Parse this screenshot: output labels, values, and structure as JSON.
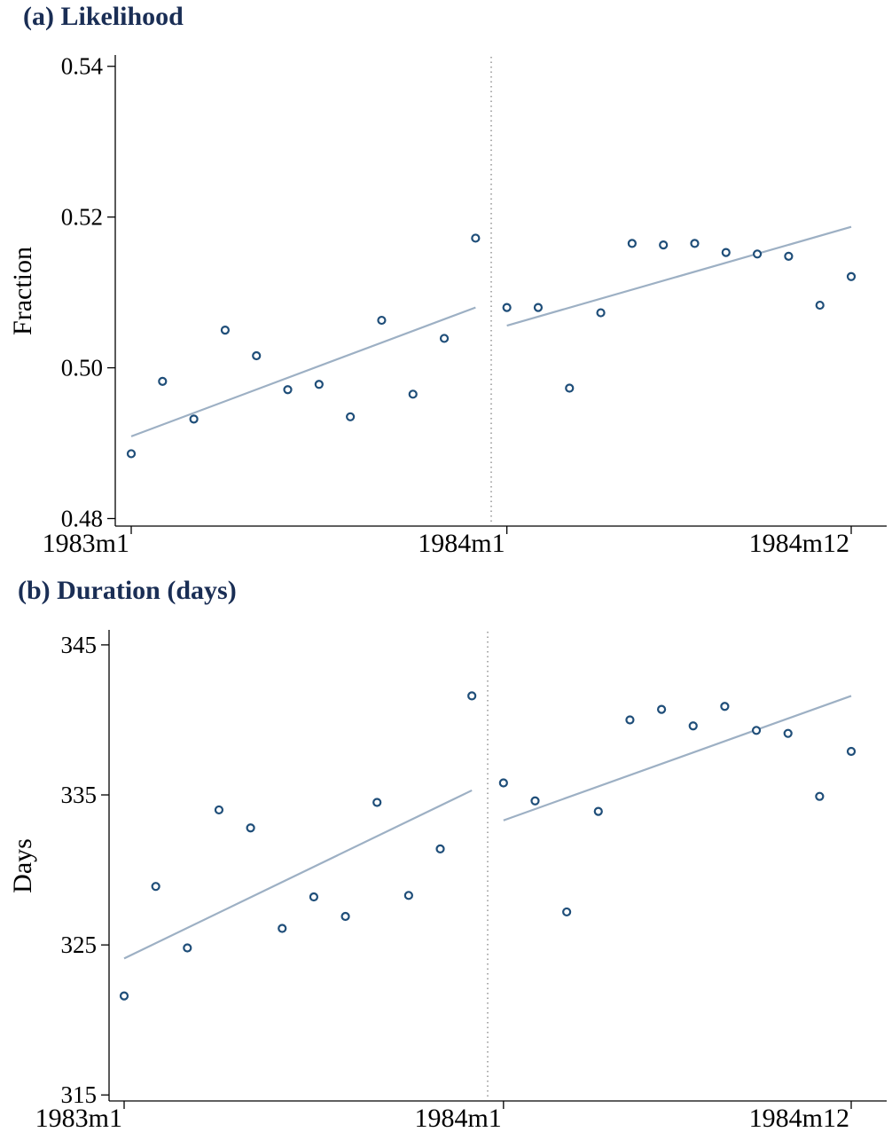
{
  "panels": [
    {
      "title": "(a) Likelihood",
      "chart_data": {
        "type": "scatter",
        "title": "(a) Likelihood",
        "xlabel": "",
        "ylabel": "Fraction",
        "x_unit": "month",
        "x_tick_labels": [
          "1983m1",
          "1984m1",
          "1984m12"
        ],
        "y_ticks": [
          0.48,
          0.5,
          0.52,
          0.54
        ],
        "y_tick_labels": [
          "0.48",
          "0.50",
          "0.52",
          "0.54"
        ],
        "ylim": [
          0.479,
          0.5415
        ],
        "xlim": [
          "1983m1",
          "1984m12"
        ],
        "cutoff": "1984m1",
        "grid": false,
        "colors": {
          "points": "#1f4e79",
          "fit": "#9db0c4",
          "cutoff": "#9a9a9a"
        },
        "series": [
          {
            "x": [
              "1983m1",
              "1983m2",
              "1983m3",
              "1983m4",
              "1983m5",
              "1983m6",
              "1983m7",
              "1983m8",
              "1983m9",
              "1983m10",
              "1983m11",
              "1983m12",
              "1984m1",
              "1984m2",
              "1984m3",
              "1984m4",
              "1984m5",
              "1984m6",
              "1984m7",
              "1984m8",
              "1984m9",
              "1984m10",
              "1984m11",
              "1984m12"
            ],
            "y": [
              0.4886,
              0.4982,
              0.4932,
              0.505,
              0.5016,
              0.4971,
              0.4978,
              0.4935,
              0.5063,
              0.4965,
              0.5039,
              0.5172,
              0.508,
              0.508,
              0.4973,
              0.5073,
              0.5165,
              0.5163,
              0.5165,
              0.5153,
              0.5151,
              0.5148,
              0.5083,
              0.5121
            ]
          }
        ],
        "fit_lines": [
          {
            "x": [
              "1983m1",
              "1983m12"
            ],
            "y": [
              0.4909,
              0.508
            ]
          },
          {
            "x": [
              "1984m1",
              "1984m12"
            ],
            "y": [
              0.5056,
              0.5187
            ]
          }
        ]
      }
    },
    {
      "title": "(b) Duration (days)",
      "chart_data": {
        "type": "scatter",
        "title": "(b) Duration (days)",
        "xlabel": "",
        "ylabel": "Days",
        "x_unit": "month",
        "x_tick_labels": [
          "1983m1",
          "1984m1",
          "1984m12"
        ],
        "y_ticks": [
          315,
          325,
          335,
          345
        ],
        "y_tick_labels": [
          "315",
          "325",
          "335",
          "345"
        ],
        "ylim": [
          314.6,
          346.0
        ],
        "xlim": [
          "1983m1",
          "1984m12"
        ],
        "cutoff": "1984m1",
        "grid": false,
        "colors": {
          "points": "#1f4e79",
          "fit": "#9db0c4",
          "cutoff": "#9a9a9a"
        },
        "series": [
          {
            "x": [
              "1983m1",
              "1983m2",
              "1983m3",
              "1983m4",
              "1983m5",
              "1983m6",
              "1983m7",
              "1983m8",
              "1983m9",
              "1983m10",
              "1983m11",
              "1983m12",
              "1984m1",
              "1984m2",
              "1984m3",
              "1984m4",
              "1984m5",
              "1984m6",
              "1984m7",
              "1984m8",
              "1984m9",
              "1984m10",
              "1984m11",
              "1984m12"
            ],
            "y": [
              321.6,
              328.9,
              324.8,
              334.0,
              332.8,
              326.1,
              328.2,
              326.9,
              334.5,
              328.3,
              331.4,
              341.6,
              335.8,
              334.6,
              327.2,
              333.9,
              340.0,
              340.7,
              339.6,
              340.9,
              339.3,
              339.1,
              334.9,
              337.9
            ]
          }
        ],
        "fit_lines": [
          {
            "x": [
              "1983m1",
              "1983m12"
            ],
            "y": [
              324.1,
              335.3
            ]
          },
          {
            "x": [
              "1984m1",
              "1984m12"
            ],
            "y": [
              333.3,
              341.6
            ]
          }
        ]
      }
    }
  ]
}
